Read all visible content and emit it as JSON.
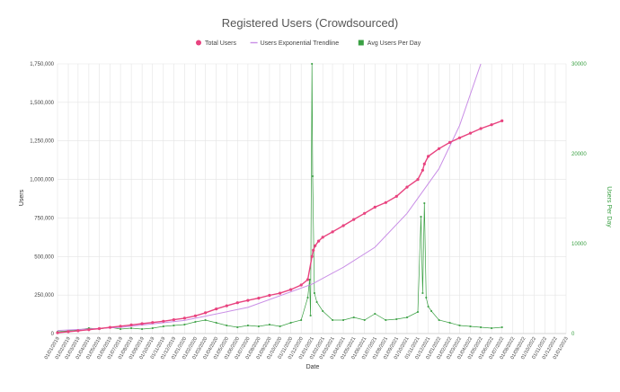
{
  "chart_data": {
    "type": "line",
    "title": "Registered Users (Crowdsourced)",
    "legend": {
      "placement": "top-center",
      "items": [
        {
          "name": "Total Users",
          "color": "#e8437f",
          "marker": "circle"
        },
        {
          "name": "Users Exponential Trendline",
          "color": "#c98ee6",
          "marker": "line"
        },
        {
          "name": "Avg Users Per Day",
          "color": "#3aa043",
          "marker": "square"
        }
      ]
    },
    "xlabel": "Date",
    "ylabel": "Users",
    "y2label": "Users Per Day",
    "ylim": [
      0,
      1750000
    ],
    "y2lim": [
      0,
      30000
    ],
    "yticks": [
      {
        "value": 0,
        "label": "0"
      },
      {
        "value": 250000,
        "label": "250,000"
      },
      {
        "value": 500000,
        "label": "500,000"
      },
      {
        "value": 750000,
        "label": "750,000"
      },
      {
        "value": 1000000,
        "label": "1,000,000"
      },
      {
        "value": 1250000,
        "label": "1,250,000"
      },
      {
        "value": 1500000,
        "label": "1,500,000"
      },
      {
        "value": 1750000,
        "label": "1,750,000"
      }
    ],
    "y2ticks": [
      {
        "value": 0,
        "label": "0"
      },
      {
        "value": 10000,
        "label": "10000"
      },
      {
        "value": 20000,
        "label": "20000"
      },
      {
        "value": 30000,
        "label": "30000"
      }
    ],
    "xlim": [
      "2019-01-01",
      "2023-01-01"
    ],
    "xticks": [
      "01/01/2019",
      "01/02/2019",
      "01/03/2019",
      "01/04/2019",
      "01/05/2019",
      "01/06/2019",
      "01/07/2019",
      "01/08/2019",
      "01/09/2019",
      "01/10/2019",
      "01/11/2019",
      "01/12/2019",
      "01/01/2020",
      "01/02/2020",
      "01/03/2020",
      "01/04/2020",
      "01/05/2020",
      "01/06/2020",
      "01/07/2020",
      "01/08/2020",
      "01/09/2020",
      "01/10/2020",
      "01/11/2020",
      "01/12/2020",
      "01/01/2021",
      "01/02/2021",
      "01/03/2021",
      "01/04/2021",
      "01/05/2021",
      "01/06/2021",
      "01/07/2021",
      "01/08/2021",
      "01/09/2021",
      "01/10/2021",
      "01/11/2021",
      "01/12/2021",
      "01/01/2022",
      "01/02/2022",
      "01/03/2022",
      "01/04/2022",
      "01/05/2022",
      "01/06/2022",
      "01/07/2022",
      "01/08/2022",
      "01/09/2022",
      "01/10/2022",
      "01/11/2022",
      "01/12/2022",
      "01/01/2023"
    ],
    "grid": true,
    "series": [
      {
        "name": "Total Users",
        "axis": "left",
        "color": "#e8437f",
        "x": [
          "2019-01-01",
          "2019-02-01",
          "2019-03-01",
          "2019-04-01",
          "2019-05-01",
          "2019-06-01",
          "2019-07-01",
          "2019-08-01",
          "2019-09-01",
          "2019-10-01",
          "2019-11-01",
          "2019-12-01",
          "2020-01-01",
          "2020-02-01",
          "2020-03-01",
          "2020-04-01",
          "2020-05-01",
          "2020-06-01",
          "2020-07-01",
          "2020-08-01",
          "2020-09-01",
          "2020-10-01",
          "2020-11-01",
          "2020-12-01",
          "2020-12-20",
          "2021-01-01",
          "2021-01-05",
          "2021-01-10",
          "2021-01-20",
          "2021-02-01",
          "2021-03-01",
          "2021-04-01",
          "2021-05-01",
          "2021-06-01",
          "2021-07-01",
          "2021-08-01",
          "2021-09-01",
          "2021-10-01",
          "2021-11-01",
          "2021-11-15",
          "2021-11-20",
          "2021-12-01",
          "2022-01-01",
          "2022-02-01",
          "2022-03-01",
          "2022-04-01",
          "2022-05-01",
          "2022-06-01",
          "2022-07-01"
        ],
        "values": [
          5000,
          12000,
          18000,
          25000,
          32000,
          40000,
          48000,
          56000,
          64000,
          72000,
          80000,
          90000,
          100000,
          115000,
          135000,
          160000,
          180000,
          200000,
          215000,
          230000,
          248000,
          262000,
          285000,
          315000,
          350000,
          500000,
          540000,
          570000,
          600000,
          625000,
          660000,
          700000,
          740000,
          780000,
          820000,
          850000,
          890000,
          950000,
          1000000,
          1060000,
          1100000,
          1150000,
          1200000,
          1240000,
          1270000,
          1300000,
          1330000,
          1355000,
          1380000
        ]
      },
      {
        "name": "Users Exponential Trendline",
        "axis": "left",
        "color": "#c98ee6",
        "x": [
          "2019-01-01",
          "2019-07-01",
          "2020-01-01",
          "2020-07-01",
          "2021-01-01",
          "2021-04-01",
          "2021-07-01",
          "2021-10-01",
          "2022-01-01",
          "2022-03-01",
          "2022-05-01"
        ],
        "values": [
          20000,
          40000,
          85000,
          170000,
          320000,
          430000,
          560000,
          780000,
          1070000,
          1350000,
          1750000
        ]
      },
      {
        "name": "Avg Users Per Day",
        "axis": "right",
        "color": "#3aa043",
        "x": [
          "2019-01-01",
          "2019-02-01",
          "2019-03-01",
          "2019-04-01",
          "2019-05-01",
          "2019-06-01",
          "2019-07-01",
          "2019-08-01",
          "2019-09-01",
          "2019-10-01",
          "2019-11-01",
          "2019-12-01",
          "2020-01-01",
          "2020-02-01",
          "2020-03-01",
          "2020-04-01",
          "2020-05-01",
          "2020-06-01",
          "2020-07-01",
          "2020-08-01",
          "2020-09-01",
          "2020-10-01",
          "2020-11-01",
          "2020-12-01",
          "2020-12-20",
          "2020-12-25",
          "2020-12-28",
          "2021-01-01",
          "2021-01-03",
          "2021-01-08",
          "2021-01-15",
          "2021-02-01",
          "2021-03-01",
          "2021-04-01",
          "2021-05-01",
          "2021-06-01",
          "2021-07-01",
          "2021-08-01",
          "2021-09-01",
          "2021-10-01",
          "2021-11-01",
          "2021-11-10",
          "2021-11-15",
          "2021-11-20",
          "2021-11-25",
          "2021-12-01",
          "2021-12-10",
          "2022-01-01",
          "2022-02-01",
          "2022-03-01",
          "2022-04-01",
          "2022-05-01",
          "2022-06-01",
          "2022-07-01"
        ],
        "values": [
          200,
          300,
          400,
          600,
          500,
          700,
          500,
          600,
          500,
          600,
          800,
          900,
          1000,
          1300,
          1500,
          1200,
          900,
          700,
          900,
          800,
          1000,
          800,
          1200,
          1500,
          4000,
          6000,
          2000,
          30000,
          17500,
          4500,
          3500,
          2500,
          1500,
          1500,
          1800,
          1500,
          2200,
          1500,
          1600,
          1800,
          2400,
          13000,
          4500,
          14500,
          4000,
          3000,
          2500,
          1500,
          1200,
          900,
          800,
          700,
          600,
          700
        ]
      }
    ]
  }
}
